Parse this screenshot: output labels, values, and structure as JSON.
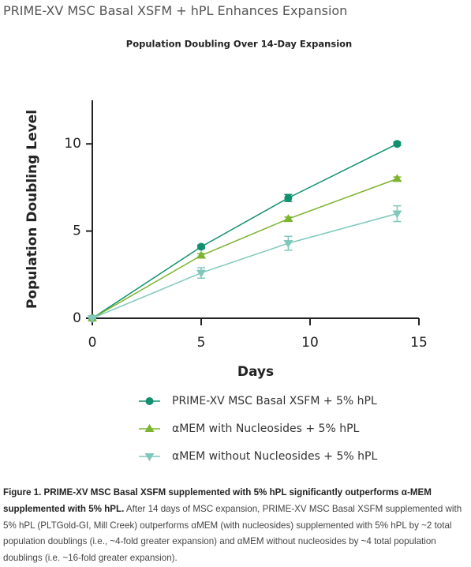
{
  "heading": "PRIME-XV MSC Basal XSFM + hPL Enhances Expansion",
  "chart_data": {
    "type": "line",
    "title": "Population Doubling Over 14-Day Expansion",
    "x_label": "Days",
    "y_label": "Population Doubling Level",
    "x": [
      0,
      5,
      9,
      14
    ],
    "xlim": [
      0,
      15
    ],
    "xticks": [
      0,
      5,
      10,
      15
    ],
    "ylim": [
      0,
      12.5
    ],
    "yticks": [
      0,
      5,
      10
    ],
    "series": [
      {
        "name": "PRIME-XV MSC Basal XSFM  + 5% hPL",
        "color": "#10906e",
        "marker": "circle",
        "values": [
          0,
          4.1,
          6.9,
          10.0
        ],
        "errors": [
          0,
          0.1,
          0.2,
          0.1
        ]
      },
      {
        "name": "αMEM with Nucleosides + 5% hPL",
        "color": "#7cb32f",
        "marker": "triangle-up",
        "values": [
          0,
          3.6,
          5.7,
          8.0
        ],
        "errors": [
          0,
          0.1,
          0.1,
          0.1
        ]
      },
      {
        "name": "αMEM without Nucleosides + 5% hPL",
        "color": "#7fc8bb",
        "marker": "triangle-down",
        "values": [
          0,
          2.6,
          4.3,
          6.0
        ],
        "errors": [
          0,
          0.3,
          0.4,
          0.45
        ]
      }
    ]
  },
  "caption": {
    "bold": "Figure 1. PRIME-XV MSC Basal XSFM supplemented with 5% hPL significantly outperforms α-MEM supplemented with 5% hPL.",
    "text": " After 14 days of MSC expansion, PRIME-XV MSC Basal XSFM supplemented with 5% hPL (PLTGold-GI, Mill Creek) outperforms αMEM (with nucleosides) supplemented with 5% hPL by ~2 total population doublings (i.e., ~4-fold greater expansion) and αMEM without nucleosides by ~4 total population doublings (i.e. ~16-fold greater expansion)."
  }
}
